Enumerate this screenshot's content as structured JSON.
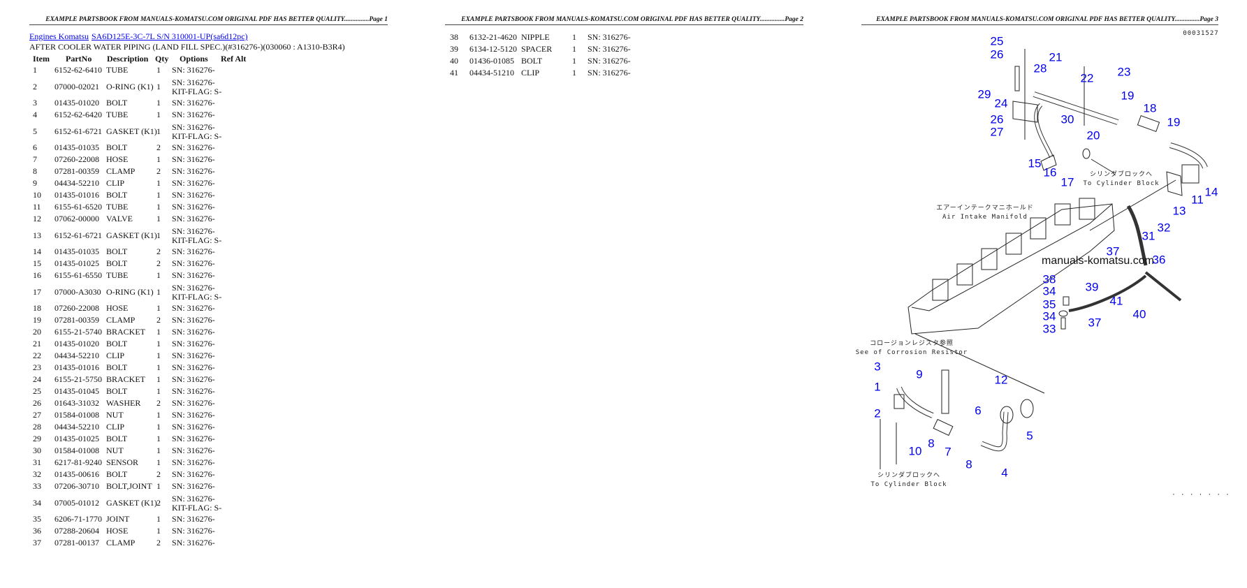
{
  "pages": [
    {
      "header": "EXAMPLE PARTSBOOK FROM MANUALS-KOMATSU.COM ORIGINAL PDF HAS BETTER QUALITY...............Page 1"
    },
    {
      "header": "EXAMPLE PARTSBOOK FROM MANUALS-KOMATSU.COM ORIGINAL PDF HAS BETTER QUALITY...............Page 2"
    },
    {
      "header": "EXAMPLE PARTSBOOK FROM MANUALS-KOMATSU.COM ORIGINAL PDF HAS BETTER QUALITY...............Page 3"
    }
  ],
  "breadcrumb": {
    "link1": "Engines Komatsu",
    "link2": "SA6D125E-3C-7L S/N 310001-UP(sa6d12pc)"
  },
  "section_title": "AFTER COOLER WATER PIPING (LAND FILL SPEC.)(#316276-)(030060 : A1310-B3R4)",
  "columns": {
    "item": "Item",
    "part_no": "PartNo",
    "description": "Description",
    "qty": "Qty",
    "options": "Options",
    "ref_alt": "Ref Alt"
  },
  "parts": [
    {
      "item": "1",
      "part_no": "6152-62-6410",
      "description": "TUBE",
      "qty": "1",
      "options": [
        "SN: 316276-"
      ]
    },
    {
      "item": "2",
      "part_no": "07000-02021",
      "description": "O-RING (K1)",
      "qty": "1",
      "options": [
        "SN: 316276-",
        "KIT-FLAG: S-"
      ]
    },
    {
      "item": "3",
      "part_no": "01435-01020",
      "description": "BOLT",
      "qty": "1",
      "options": [
        "SN: 316276-"
      ]
    },
    {
      "item": "4",
      "part_no": "6152-62-6420",
      "description": "TUBE",
      "qty": "1",
      "options": [
        "SN: 316276-"
      ]
    },
    {
      "item": "5",
      "part_no": "6152-61-6721",
      "description": "GASKET (K1)",
      "qty": "1",
      "options": [
        "SN: 316276-",
        "KIT-FLAG: S-"
      ]
    },
    {
      "item": "6",
      "part_no": "01435-01035",
      "description": "BOLT",
      "qty": "2",
      "options": [
        "SN: 316276-"
      ]
    },
    {
      "item": "7",
      "part_no": "07260-22008",
      "description": "HOSE",
      "qty": "1",
      "options": [
        "SN: 316276-"
      ]
    },
    {
      "item": "8",
      "part_no": "07281-00359",
      "description": "CLAMP",
      "qty": "2",
      "options": [
        "SN: 316276-"
      ]
    },
    {
      "item": "9",
      "part_no": "04434-52210",
      "description": "CLIP",
      "qty": "1",
      "options": [
        "SN: 316276-"
      ]
    },
    {
      "item": "10",
      "part_no": "01435-01016",
      "description": "BOLT",
      "qty": "1",
      "options": [
        "SN: 316276-"
      ]
    },
    {
      "item": "11",
      "part_no": "6155-61-6520",
      "description": "TUBE",
      "qty": "1",
      "options": [
        "SN: 316276-"
      ]
    },
    {
      "item": "12",
      "part_no": "07062-00000",
      "description": "VALVE",
      "qty": "1",
      "options": [
        "SN: 316276-"
      ]
    },
    {
      "item": "13",
      "part_no": "6152-61-6721",
      "description": "GASKET (K1)",
      "qty": "1",
      "options": [
        "SN: 316276-",
        "KIT-FLAG: S-"
      ]
    },
    {
      "item": "14",
      "part_no": "01435-01035",
      "description": "BOLT",
      "qty": "2",
      "options": [
        "SN: 316276-"
      ]
    },
    {
      "item": "15",
      "part_no": "01435-01025",
      "description": "BOLT",
      "qty": "2",
      "options": [
        "SN: 316276-"
      ]
    },
    {
      "item": "16",
      "part_no": "6155-61-6550",
      "description": "TUBE",
      "qty": "1",
      "options": [
        "SN: 316276-"
      ]
    },
    {
      "item": "17",
      "part_no": "07000-A3030",
      "description": "O-RING (K1)",
      "qty": "1",
      "options": [
        "SN: 316276-",
        "KIT-FLAG: S-"
      ]
    },
    {
      "item": "18",
      "part_no": "07260-22008",
      "description": "HOSE",
      "qty": "1",
      "options": [
        "SN: 316276-"
      ]
    },
    {
      "item": "19",
      "part_no": "07281-00359",
      "description": "CLAMP",
      "qty": "2",
      "options": [
        "SN: 316276-"
      ]
    },
    {
      "item": "20",
      "part_no": "6155-21-5740",
      "description": "BRACKET",
      "qty": "1",
      "options": [
        "SN: 316276-"
      ]
    },
    {
      "item": "21",
      "part_no": "01435-01020",
      "description": "BOLT",
      "qty": "1",
      "options": [
        "SN: 316276-"
      ]
    },
    {
      "item": "22",
      "part_no": "04434-52210",
      "description": "CLIP",
      "qty": "1",
      "options": [
        "SN: 316276-"
      ]
    },
    {
      "item": "23",
      "part_no": "01435-01016",
      "description": "BOLT",
      "qty": "1",
      "options": [
        "SN: 316276-"
      ]
    },
    {
      "item": "24",
      "part_no": "6155-21-5750",
      "description": "BRACKET",
      "qty": "1",
      "options": [
        "SN: 316276-"
      ]
    },
    {
      "item": "25",
      "part_no": "01435-01045",
      "description": "BOLT",
      "qty": "1",
      "options": [
        "SN: 316276-"
      ]
    },
    {
      "item": "26",
      "part_no": "01643-31032",
      "description": "WASHER",
      "qty": "2",
      "options": [
        "SN: 316276-"
      ]
    },
    {
      "item": "27",
      "part_no": "01584-01008",
      "description": "NUT",
      "qty": "1",
      "options": [
        "SN: 316276-"
      ]
    },
    {
      "item": "28",
      "part_no": "04434-52210",
      "description": "CLIP",
      "qty": "1",
      "options": [
        "SN: 316276-"
      ]
    },
    {
      "item": "29",
      "part_no": "01435-01025",
      "description": "BOLT",
      "qty": "1",
      "options": [
        "SN: 316276-"
      ]
    },
    {
      "item": "30",
      "part_no": "01584-01008",
      "description": "NUT",
      "qty": "1",
      "options": [
        "SN: 316276-"
      ]
    },
    {
      "item": "31",
      "part_no": "6217-81-9240",
      "description": "SENSOR",
      "qty": "1",
      "options": [
        "SN: 316276-"
      ]
    },
    {
      "item": "32",
      "part_no": "01435-00616",
      "description": "BOLT",
      "qty": "2",
      "options": [
        "SN: 316276-"
      ]
    },
    {
      "item": "33",
      "part_no": "07206-30710",
      "description": "BOLT,JOINT",
      "qty": "1",
      "options": [
        "SN: 316276-"
      ]
    },
    {
      "item": "34",
      "part_no": "07005-01012",
      "description": "GASKET (K1)",
      "qty": "2",
      "options": [
        "SN: 316276-",
        "KIT-FLAG: S-"
      ]
    },
    {
      "item": "35",
      "part_no": "6206-71-1770",
      "description": "JOINT",
      "qty": "1",
      "options": [
        "SN: 316276-"
      ]
    },
    {
      "item": "36",
      "part_no": "07288-20604",
      "description": "HOSE",
      "qty": "1",
      "options": [
        "SN: 316276-"
      ]
    },
    {
      "item": "37",
      "part_no": "07281-00137",
      "description": "CLAMP",
      "qty": "2",
      "options": [
        "SN: 316276-"
      ]
    }
  ],
  "parts_page2": [
    {
      "item": "38",
      "part_no": "6132-21-4620",
      "description": "NIPPLE",
      "qty": "1",
      "options": [
        "SN: 316276-"
      ]
    },
    {
      "item": "39",
      "part_no": "6134-12-5120",
      "description": "SPACER",
      "qty": "1",
      "options": [
        "SN: 316276-"
      ]
    },
    {
      "item": "40",
      "part_no": "01436-01085",
      "description": "BOLT",
      "qty": "1",
      "options": [
        "SN: 316276-"
      ]
    },
    {
      "item": "41",
      "part_no": "04434-51210",
      "description": "CLIP",
      "qty": "1",
      "options": [
        "SN: 316276-"
      ]
    }
  ],
  "diagram": {
    "drawing_no": "00031527",
    "watermark": "manuals-komatsu.com",
    "label_color": "#0000ee",
    "notes": {
      "to_cyl_jp": "シリンダブロックへ",
      "to_cyl_en": "To Cylinder Block",
      "intake_jp": "エアーインテークマニホールド",
      "intake_en": "Air Intake Manifold",
      "corrosion_jp": "コロージョンレジスタ参照",
      "corrosion_en": "See of Corrosion Resistor",
      "to_cyl2_jp": "シリンダブロックへ",
      "to_cyl2_en": "To Cylinder Block",
      "footer_mark": "· · · · · · ·"
    },
    "callouts": [
      "25",
      "26",
      "21",
      "28",
      "23",
      "22",
      "29",
      "24",
      "19",
      "18",
      "19",
      "26",
      "30",
      "27",
      "20",
      "15",
      "16",
      "17",
      "14",
      "11",
      "13",
      "32",
      "31",
      "37",
      "36",
      "38",
      "39",
      "34",
      "41",
      "35",
      "40",
      "34",
      "37",
      "33",
      "3",
      "9",
      "12",
      "1",
      "6",
      "2",
      "5",
      "8",
      "10",
      "7",
      "8",
      "4"
    ]
  }
}
